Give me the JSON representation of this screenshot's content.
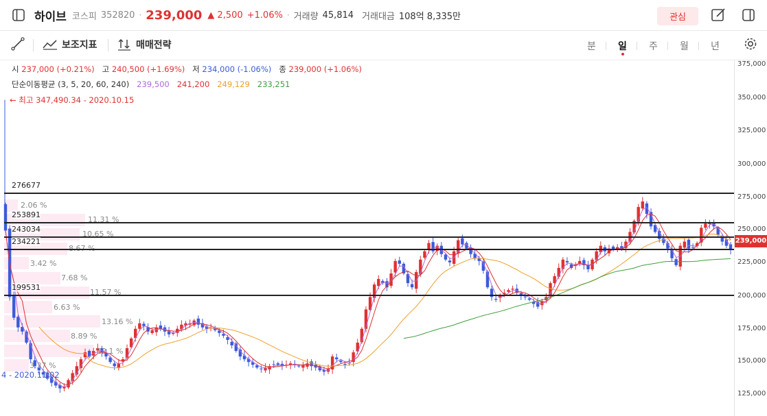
{
  "header": {
    "name": "하이브",
    "market": "코스피",
    "code": "352820",
    "price": "239,000",
    "change": "▲ 2,500",
    "change_pct": "+1.06%",
    "volume_label": "거래량",
    "volume": "45,814",
    "amount_label": "거래대금",
    "amount": "108억 8,335만",
    "fav_label": "관심"
  },
  "toolbar": {
    "indicator_label": "보조지표",
    "strategy_label": "매매전략",
    "periods": [
      "분",
      "일",
      "주",
      "월",
      "년"
    ],
    "active_period": "일"
  },
  "info": {
    "open_label": "시",
    "open": "237,000 (+0.21%)",
    "high_label": "고",
    "high": "240,500 (+1.69%)",
    "low_label": "저",
    "low": "234,000 (-1.06%)",
    "close_label": "종",
    "close": "239,000 (+1.06%)",
    "ma_label": "단순이동평균 (3, 5, 20, 60, 240)",
    "ma_values": [
      "239,500",
      "241,200",
      "249,129",
      "233,251"
    ],
    "max_label": "← 최고 347,490.34 - 2020.10.15",
    "min_label": "4 - 2020.11.02"
  },
  "price_lines": [
    276677,
    253891,
    243034,
    234221,
    199531
  ],
  "volume_profile": [
    "2.06 %",
    "11.31 %",
    "10.65 %",
    "8.67 %",
    "3.42 %",
    "7.68 %",
    "11.57 %",
    "6.63 %",
    "13.16 %",
    "8.89 %",
    "12.1 %",
    "3.37 %"
  ],
  "last_price_tag": "239,000",
  "colors": {
    "up": "#e03131",
    "down": "#3b5bdb",
    "ma3": "#b06ad8",
    "ma5": "#e03131",
    "ma20": "#f0a02a",
    "ma60": "#3f9f3f"
  },
  "chart_data": {
    "type": "candlestick",
    "y_axis_ticks": [
      "375,000",
      "350,000",
      "325,000",
      "300,000",
      "275,000",
      "250,000",
      "225,000",
      "200,000",
      "175,000",
      "150,000",
      "125,000"
    ],
    "ylim": [
      119000,
      376000
    ],
    "closes": [
      253000,
      205000,
      190000,
      183000,
      180000,
      172000,
      160000,
      155000,
      152000,
      149000,
      146000,
      143000,
      141000,
      139000,
      140000,
      145000,
      150000,
      155000,
      160000,
      165000,
      162000,
      166000,
      168000,
      165000,
      162000,
      158000,
      155000,
      157000,
      160000,
      168000,
      175000,
      182000,
      186000,
      184000,
      180000,
      181000,
      183000,
      182000,
      180000,
      178000,
      179000,
      182000,
      185000,
      186000,
      186000,
      188000,
      185000,
      183000,
      182000,
      183000,
      181000,
      179000,
      177000,
      174000,
      170000,
      166000,
      162000,
      160000,
      158000,
      156000,
      154000,
      153000,
      154000,
      155000,
      156000,
      156000,
      155000,
      156000,
      157000,
      156000,
      155000,
      156000,
      157000,
      155000,
      154000,
      152000,
      151000,
      153000,
      162000,
      160000,
      158000,
      156000,
      157000,
      165000,
      172000,
      182000,
      196000,
      205000,
      214000,
      218000,
      215000,
      212000,
      222000,
      231000,
      229000,
      222000,
      215000,
      212000,
      223000,
      232000,
      238000,
      244000,
      238000,
      242000,
      236000,
      232000,
      230000,
      238000,
      246000,
      243000,
      240000,
      236000,
      233000,
      231000,
      224000,
      212000,
      205000,
      203000,
      206000,
      208000,
      210000,
      211000,
      208000,
      206000,
      205000,
      203000,
      200000,
      198000,
      202000,
      205000,
      215000,
      220000,
      226000,
      232000,
      230000,
      226000,
      228000,
      231000,
      228000,
      225000,
      232000,
      238000,
      242000,
      238000,
      240000,
      239000,
      241000,
      240000,
      245000,
      252000,
      260000,
      270000,
      274000,
      265000,
      256000,
      252000,
      247000,
      244000,
      240000,
      233000,
      228000,
      242000,
      245000,
      240000,
      241000,
      244000,
      255000,
      258000,
      259000,
      256000,
      250000,
      245000,
      242000,
      239000
    ]
  }
}
